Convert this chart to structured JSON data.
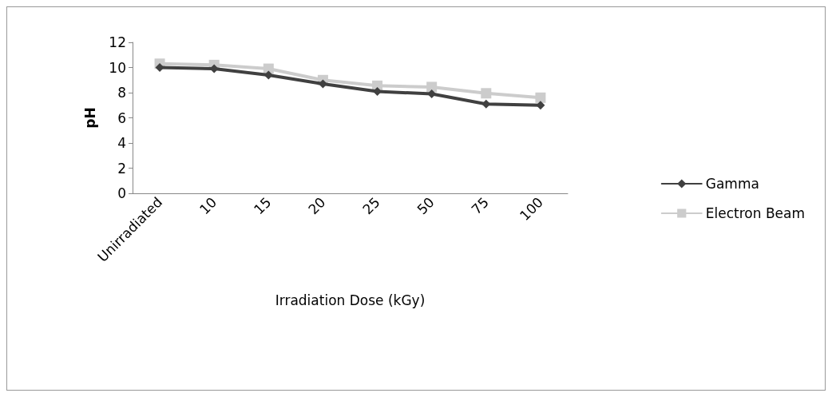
{
  "chart_data": {
    "type": "line",
    "xlabel": "Irradiation Dose (kGy)",
    "ylabel": "pH",
    "categories": [
      "Unirradiated",
      "10",
      "15",
      "20",
      "25",
      "50",
      "75",
      "100"
    ],
    "series": [
      {
        "name": "Gamma",
        "color": "#404040",
        "marker": "diamond",
        "values": [
          10.0,
          9.9,
          9.4,
          8.7,
          8.1,
          7.9,
          7.1,
          7.0
        ]
      },
      {
        "name": "Electron Beam",
        "color": "#cccccc",
        "marker": "square",
        "values": [
          10.3,
          10.2,
          9.9,
          9.0,
          8.55,
          8.45,
          7.95,
          7.6
        ]
      }
    ],
    "ylim": [
      0,
      12
    ],
    "yticks": [
      0,
      2,
      4,
      6,
      8,
      10,
      12
    ],
    "grid": false,
    "legend": "right",
    "line_style": "solid"
  }
}
